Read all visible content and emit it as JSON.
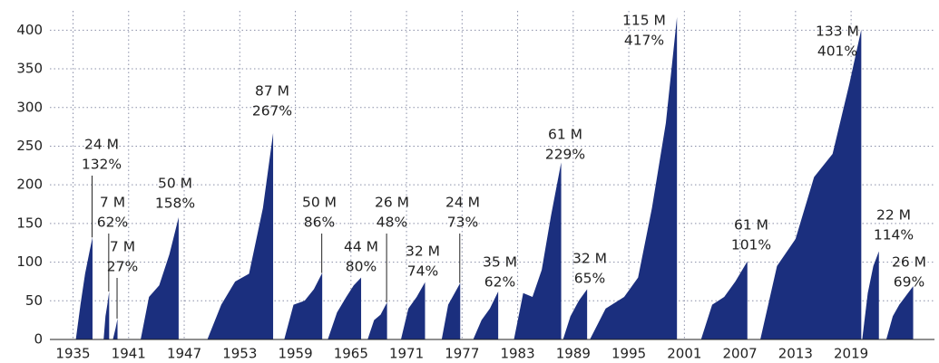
{
  "chart_data": {
    "type": "area",
    "color": "#1b2f7e",
    "grid": true,
    "xlim": [
      1932.5,
      2028
    ],
    "ylim": [
      0,
      425
    ],
    "xticks": [
      1935,
      1941,
      1947,
      1953,
      1959,
      1965,
      1971,
      1977,
      1983,
      1989,
      1995,
      2001,
      2007,
      2013,
      2019
    ],
    "yticks": [
      0,
      50,
      100,
      150,
      200,
      250,
      300,
      350,
      400
    ],
    "series": [
      {
        "x": [
          1935.3,
          1935.8,
          1936.3,
          1936.8,
          1937.1,
          1937.1
        ],
        "values": [
          0,
          45,
          85,
          115,
          132,
          0
        ],
        "labels": [
          "24 M",
          "132%"
        ]
      },
      {
        "x": [
          1938.3,
          1938.5,
          1938.7,
          1938.9,
          1938.9
        ],
        "values": [
          0,
          30,
          45,
          62,
          0
        ],
        "labels": [
          "7 M",
          "62%"
        ]
      },
      {
        "x": [
          1939.3,
          1939.6,
          1939.8,
          1939.8
        ],
        "values": [
          0,
          15,
          27,
          0
        ],
        "labels": [
          "7 M",
          "27%"
        ]
      },
      {
        "x": [
          1942.3,
          1943.2,
          1944.3,
          1945.4,
          1946.4,
          1946.4
        ],
        "values": [
          0,
          55,
          70,
          110,
          158,
          0
        ],
        "labels": [
          "50 M",
          "158%"
        ]
      },
      {
        "x": [
          1949.5,
          1951,
          1952.5,
          1954,
          1955.5,
          1956.6,
          1956.6
        ],
        "values": [
          0,
          45,
          75,
          85,
          170,
          267,
          0
        ],
        "labels": [
          "87 M",
          "267%"
        ]
      },
      {
        "x": [
          1957.8,
          1958.8,
          1960,
          1961,
          1961.9,
          1961.9
        ],
        "values": [
          0,
          45,
          50,
          65,
          86,
          0
        ],
        "labels": [
          "50 M",
          "86%"
        ]
      },
      {
        "x": [
          1962.5,
          1963.5,
          1964.5,
          1965.3,
          1966.1,
          1966.1
        ],
        "values": [
          0,
          35,
          55,
          70,
          80,
          0
        ],
        "labels": [
          "44 M",
          "80%"
        ]
      },
      {
        "x": [
          1966.8,
          1967.5,
          1968.2,
          1968.9,
          1968.9
        ],
        "values": [
          0,
          25,
          32,
          48,
          0
        ],
        "labels": [
          "26 M",
          "48%"
        ]
      },
      {
        "x": [
          1970.4,
          1971.2,
          1972.1,
          1973,
          1973
        ],
        "values": [
          0,
          40,
          55,
          74,
          0
        ],
        "labels": [
          "32 M",
          "74%"
        ]
      },
      {
        "x": [
          1974.8,
          1975.5,
          1976.2,
          1976.8,
          1976.8
        ],
        "values": [
          0,
          45,
          60,
          73,
          0
        ],
        "labels": [
          "24 M",
          "73%"
        ]
      },
      {
        "x": [
          1978.2,
          1979.1,
          1980,
          1980.9,
          1980.9
        ],
        "values": [
          0,
          25,
          40,
          62,
          0
        ],
        "labels": [
          "35 M",
          "62%"
        ]
      },
      {
        "x": [
          1982.6,
          1983.6,
          1984.6,
          1985.6,
          1986.6,
          1987.7,
          1987.7
        ],
        "values": [
          0,
          60,
          55,
          90,
          160,
          229,
          0
        ],
        "labels": [
          "61 M",
          "229%"
        ]
      },
      {
        "x": [
          1987.9,
          1988.7,
          1989.6,
          1990.5,
          1990.5
        ],
        "values": [
          0,
          30,
          50,
          65,
          0
        ],
        "labels": [
          "32 M",
          "65%"
        ]
      },
      {
        "x": [
          1990.8,
          1992.5,
          1994.5,
          1996,
          1997.5,
          1999,
          2000.2,
          2000.2
        ],
        "values": [
          0,
          40,
          55,
          80,
          170,
          280,
          417,
          0
        ],
        "labels": [
          "115 M",
          "417%"
        ]
      },
      {
        "x": [
          2002.8,
          2004,
          2005.3,
          2006.5,
          2007.8,
          2007.8
        ],
        "values": [
          0,
          45,
          55,
          75,
          101,
          0
        ],
        "labels": [
          "61 M",
          "101%"
        ]
      },
      {
        "x": [
          2009.2,
          2011,
          2013,
          2015,
          2017,
          2018.8,
          2020.1,
          2020.1
        ],
        "values": [
          0,
          95,
          130,
          210,
          240,
          330,
          401,
          0
        ],
        "labels": [
          "133 M",
          "401%"
        ]
      },
      {
        "x": [
          2020.2,
          2020.8,
          2021.4,
          2022,
          2022
        ],
        "values": [
          0,
          60,
          95,
          114,
          0
        ],
        "labels": [
          "22 M",
          "114%"
        ]
      },
      {
        "x": [
          2022.8,
          2023.5,
          2024.2,
          2025.7,
          2025.7
        ],
        "values": [
          0,
          30,
          45,
          69,
          0
        ],
        "labels": [
          "26 M",
          "69%"
        ]
      }
    ]
  }
}
